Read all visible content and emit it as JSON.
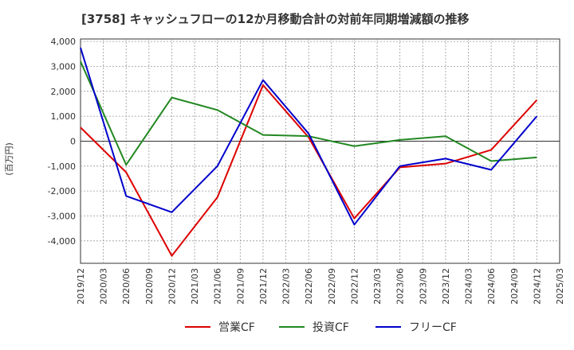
{
  "chart_data": {
    "type": "line",
    "title": "[3758]  キャッシュフローの12か月移動合計の対前年同期増減額の推移",
    "ylabel": "(百万円)",
    "xlabel": "",
    "ylim": [
      -4900,
      4100
    ],
    "yticks": [
      4000,
      3000,
      2000,
      1000,
      0,
      -1000,
      -2000,
      -3000,
      -4000
    ],
    "ytick_labels": [
      "4,000",
      "3,000",
      "2,000",
      "1,000",
      "0",
      "-1,000",
      "-2,000",
      "-3,000",
      "-4,000"
    ],
    "categories": [
      "2019/12",
      "2020/03",
      "2020/06",
      "2020/09",
      "2020/12",
      "2021/03",
      "2021/06",
      "2021/09",
      "2021/12",
      "2022/03",
      "2022/06",
      "2022/09",
      "2022/12",
      "2023/03",
      "2023/06",
      "2023/09",
      "2023/12",
      "2024/03",
      "2024/06",
      "2024/09",
      "2024/12",
      "2025/03"
    ],
    "series": [
      {
        "name": "営業CF",
        "color": "#dd0000",
        "values": [
          550,
          null,
          -1250,
          null,
          -4600,
          null,
          -2250,
          null,
          2250,
          null,
          150,
          null,
          -3100,
          null,
          -1050,
          null,
          -900,
          null,
          -350,
          null,
          1650,
          null
        ]
      },
      {
        "name": "投資CF",
        "color": "#228822",
        "values": [
          3200,
          null,
          -950,
          null,
          1750,
          null,
          1250,
          null,
          250,
          null,
          200,
          null,
          -200,
          null,
          50,
          null,
          200,
          null,
          -800,
          null,
          -650,
          null
        ]
      },
      {
        "name": "フリーCF",
        "color": "#0000cc",
        "values": [
          3750,
          null,
          -2200,
          null,
          -2850,
          null,
          -1000,
          null,
          2450,
          null,
          300,
          null,
          -3350,
          null,
          -1000,
          null,
          -700,
          null,
          -1150,
          null,
          1000,
          null
        ]
      }
    ],
    "legend_position": "bottom",
    "grid": true
  }
}
